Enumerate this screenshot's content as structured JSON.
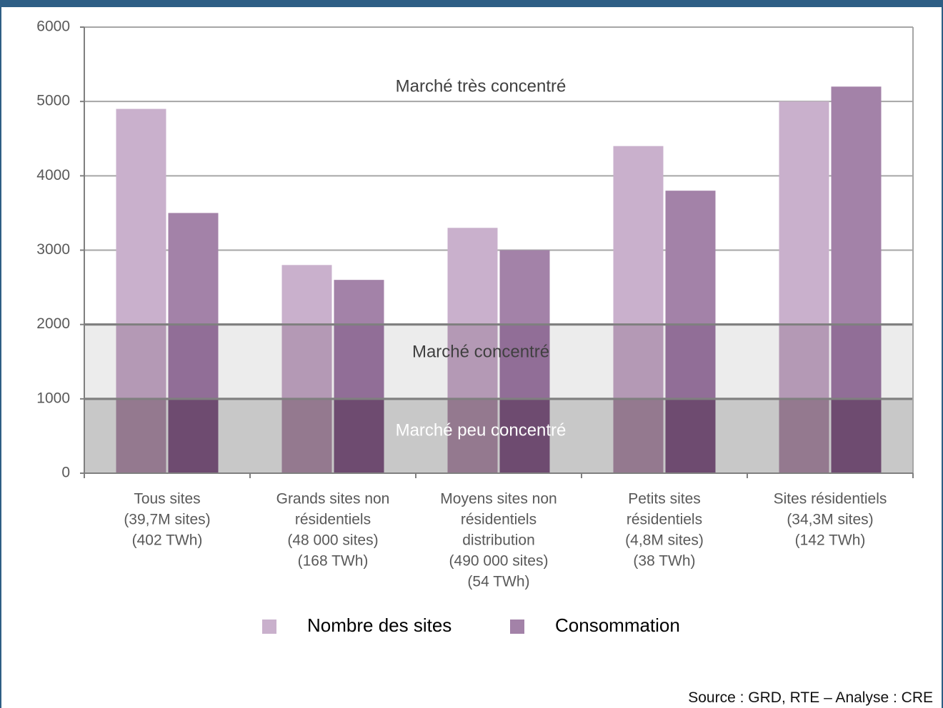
{
  "chart_data": {
    "type": "bar",
    "categories": [
      [
        "Tous sites",
        "(39,7M sites)",
        "(402 TWh)"
      ],
      [
        "Grands sites non",
        "résidentiels",
        "(48 000 sites)",
        "(168 TWh)"
      ],
      [
        "Moyens sites non",
        "résidentiels",
        "distribution",
        "(490 000 sites)",
        "(54 TWh)"
      ],
      [
        "Petits sites",
        "résidentiels",
        "(4,8M sites)",
        "(38 TWh)"
      ],
      [
        "Sites résidentiels",
        "(34,3M sites)",
        "(142 TWh)"
      ]
    ],
    "series": [
      {
        "name": "Nombre des sites",
        "values": [
          4900,
          2800,
          3300,
          4400,
          5000
        ],
        "color": "#c9b0cc"
      },
      {
        "name": "Consommation",
        "values": [
          3500,
          2600,
          3000,
          3800,
          5200
        ],
        "color": "#a382a8"
      }
    ],
    "overlay_colors": {
      "nombre_concentre": "#b499b5",
      "consommation_concentre": "#916e97",
      "nombre_peu": "#94798f",
      "consommation_peu": "#6e4b70"
    },
    "ylim": [
      0,
      6000
    ],
    "yticks": [
      0,
      1000,
      2000,
      3000,
      4000,
      5000,
      6000
    ],
    "zones": [
      {
        "label": "Marché très concentré",
        "from": 2000,
        "to": 6000,
        "color": "#ffffff",
        "label_color": "#404040"
      },
      {
        "label": "Marché concentré",
        "from": 1000,
        "to": 2000,
        "color": "#ececec",
        "label_color": "#404040"
      },
      {
        "label": "Marché peu concentré",
        "from": 0,
        "to": 1000,
        "color": "#c8c8c8",
        "label_color": "#ffffff"
      }
    ],
    "legend_position": "bottom",
    "grid": true
  },
  "source": "Source : GRD, RTE – Analyse : CRE"
}
